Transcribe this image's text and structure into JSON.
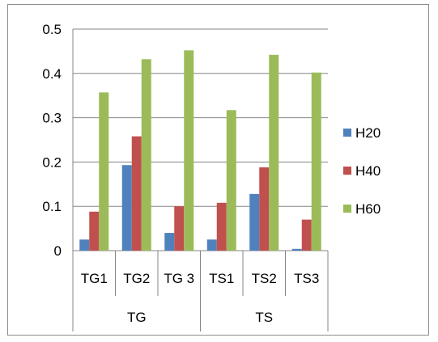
{
  "chart_data": {
    "type": "bar",
    "categories": [
      "TG1",
      "TG2",
      "TG 3",
      "TS1",
      "TS2",
      "TS3"
    ],
    "groups": [
      {
        "label": "TG",
        "categories": [
          "TG1",
          "TG2",
          "TG 3"
        ]
      },
      {
        "label": "TS",
        "categories": [
          "TS1",
          "TS2",
          "TS3"
        ]
      }
    ],
    "series": [
      {
        "name": "H20",
        "color": "#4f81bd",
        "values": [
          0.025,
          0.193,
          0.04,
          0.025,
          0.128,
          0.004
        ]
      },
      {
        "name": "H40",
        "color": "#c0504d",
        "values": [
          0.088,
          0.258,
          0.1,
          0.108,
          0.188,
          0.07
        ]
      },
      {
        "name": "H60",
        "color": "#9bbb59",
        "values": [
          0.357,
          0.432,
          0.452,
          0.317,
          0.442,
          0.402
        ]
      }
    ],
    "ylim": [
      0,
      0.5
    ],
    "yticks": [
      "0",
      "0.1",
      "0.2",
      "0.3",
      "0.4",
      "0.5"
    ],
    "grid": true,
    "legend": "right",
    "title": "",
    "xlabel": "",
    "ylabel": ""
  }
}
